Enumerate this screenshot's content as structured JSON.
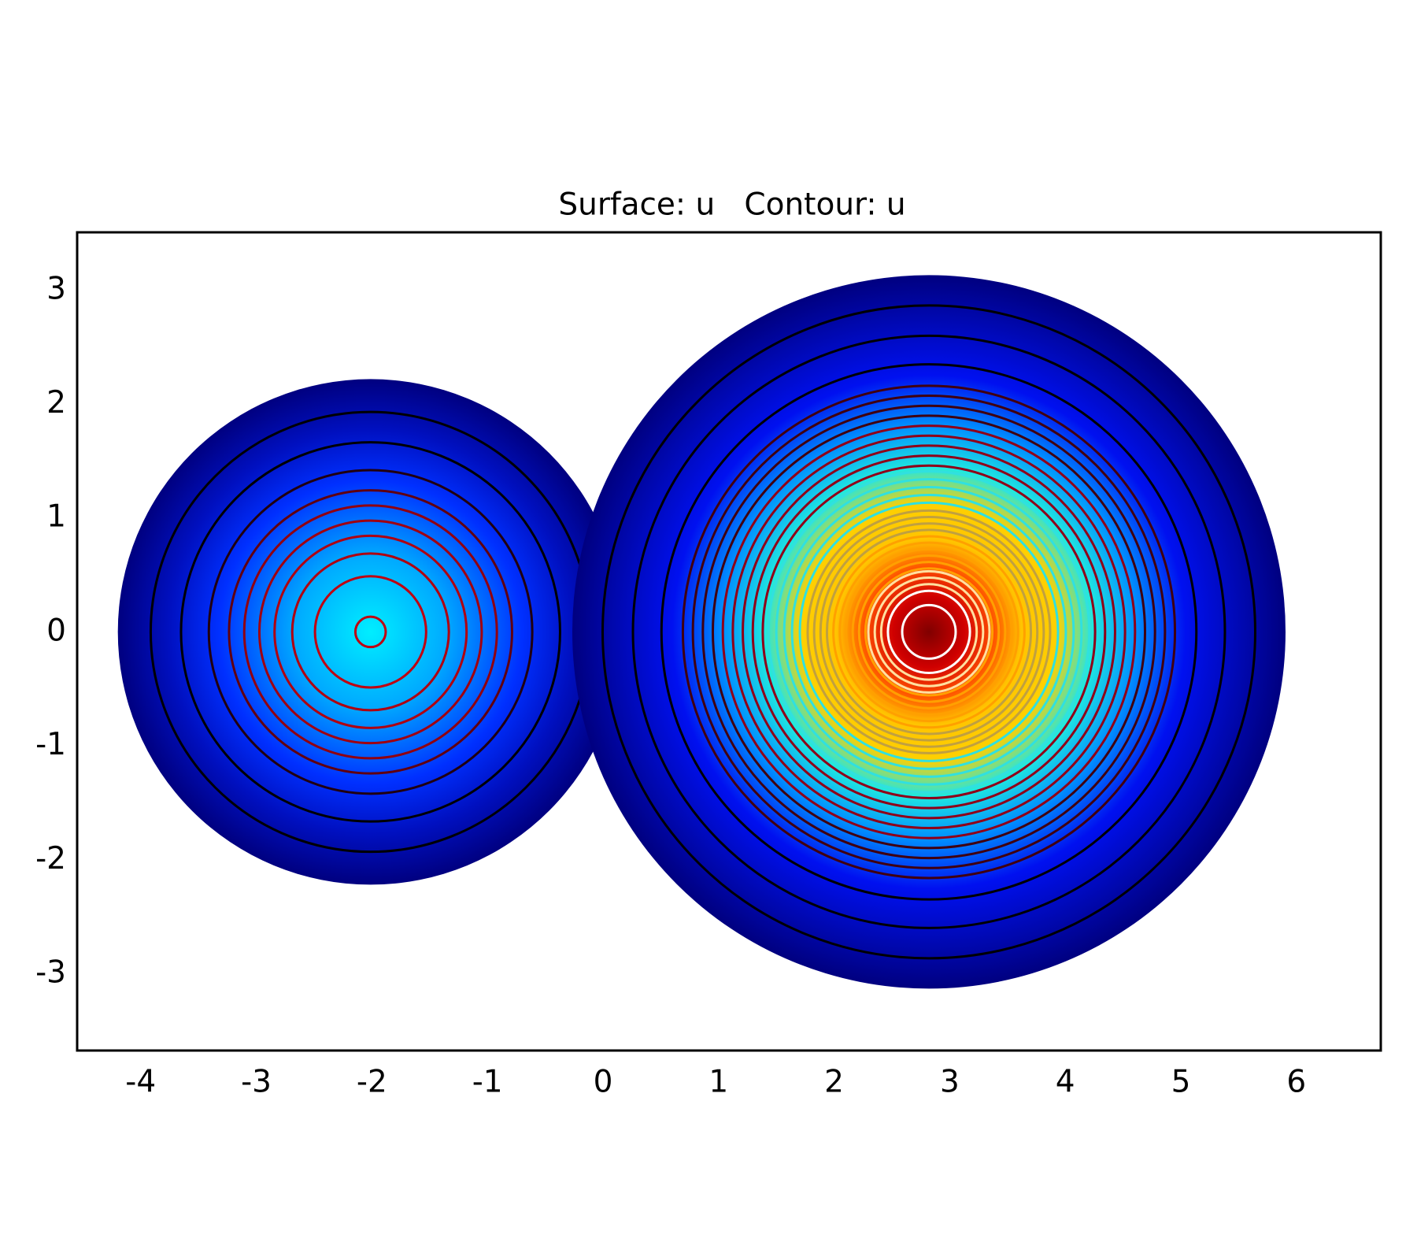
{
  "chart_data": {
    "type": "contour",
    "title": "Surface: u   Contour: u",
    "xlim": [
      -4.55,
      6.73
    ],
    "ylim": [
      -3.67,
      3.51
    ],
    "xticks": [
      -4,
      -3,
      -2,
      -1,
      0,
      1,
      2,
      3,
      4,
      5,
      6
    ],
    "yticks": [
      -3,
      -2,
      -1,
      0,
      1,
      2,
      3
    ]
  }
}
